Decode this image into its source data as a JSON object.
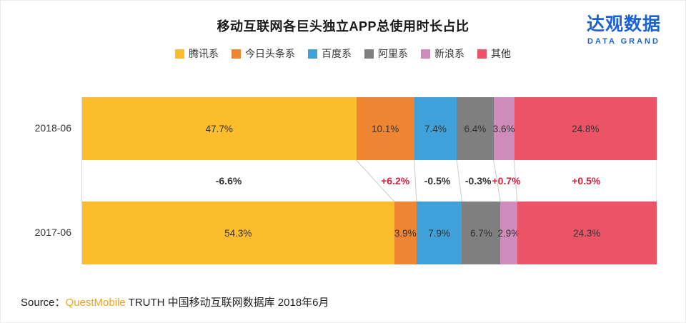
{
  "title": "移动互联网各巨头独立APP总使用时长占比",
  "logo": {
    "name": "达观数据",
    "sub": "DATA GRAND",
    "color": "#1b62d6"
  },
  "source": {
    "prefix": "Source：",
    "brand": "QuestMobile",
    "rest": " TRUTH 中国移动互联网数据库 2018年6月"
  },
  "chart_data": {
    "type": "bar",
    "stacked": true,
    "orientation": "horizontal",
    "title": "移动互联网各巨头独立APP总使用时长占比",
    "categories": [
      "2018-06",
      "2017-06"
    ],
    "unit": "%",
    "xlim": [
      0,
      100
    ],
    "series": [
      {
        "name": "腾讯系",
        "color": "#fbbd2b",
        "values": [
          47.7,
          54.3
        ]
      },
      {
        "name": "今日头条系",
        "color": "#ee8533",
        "values": [
          10.1,
          3.9
        ]
      },
      {
        "name": "百度系",
        "color": "#3fa0da",
        "values": [
          7.4,
          7.9
        ]
      },
      {
        "name": "阿里系",
        "color": "#7f7f7f",
        "values": [
          6.4,
          6.7
        ]
      },
      {
        "name": "新浪系",
        "color": "#cf8bbb",
        "values": [
          3.6,
          2.9
        ]
      },
      {
        "name": "其他",
        "color": "#eb5467",
        "values": [
          24.8,
          24.3
        ]
      }
    ],
    "deltas": [
      {
        "label": "-6.6%",
        "positive": false
      },
      {
        "label": "+6.2%",
        "positive": true
      },
      {
        "label": "-0.5%",
        "positive": false
      },
      {
        "label": "-0.3%",
        "positive": false
      },
      {
        "label": "+0.7%",
        "positive": true
      },
      {
        "label": "+0.5%",
        "positive": true
      }
    ],
    "delta_colors": {
      "positive": "#d8203c",
      "negative": "#333333"
    },
    "connector_color": "#cccccc",
    "legend_position": "top"
  }
}
